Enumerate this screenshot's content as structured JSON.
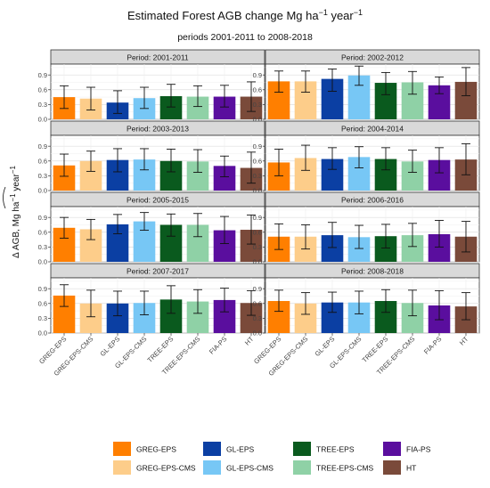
{
  "chart_data": {
    "type": "bar",
    "title": "Estimated Forest AGB change Mg ha",
    "title_superscript": "−1",
    "title_suffix": " year",
    "title_suffix_superscript": "−1",
    "subtitle": "periods 2001-2011 to 2008-2018",
    "ylabel_main": "Δ AGB, Mg ha",
    "ylabel_sup1": "−1",
    "ylabel_mid": " year",
    "ylabel_sup2": "−1",
    "ylim": [
      0,
      1.12
    ],
    "y_ticks": [
      "0.0",
      "0.3",
      "0.6",
      "0.9"
    ],
    "y_tick_values": [
      0.0,
      0.3,
      0.6,
      0.9
    ],
    "categories": [
      "GREG-EPS",
      "GREG-EPS-CMS",
      "GL-EPS",
      "GL-EPS-CMS",
      "TREE-EPS",
      "TREE-EPS-CMS",
      "FIA-PS",
      "HT"
    ],
    "colors": [
      "#ff7f00",
      "#fdcd8a",
      "#0b3fa3",
      "#77c7f5",
      "#0a5a1e",
      "#8fd1a6",
      "#5a0e9e",
      "#7a4a3a"
    ],
    "grid": true,
    "legend_position": "bottom",
    "panels": [
      {
        "label": "Period: 2001-2011",
        "values": [
          0.45,
          0.42,
          0.34,
          0.43,
          0.47,
          0.46,
          0.46,
          0.46
        ],
        "err_low": [
          0.22,
          0.19,
          0.12,
          0.22,
          0.25,
          0.26,
          0.25,
          0.16
        ],
        "err_high": [
          0.68,
          0.65,
          0.58,
          0.65,
          0.71,
          0.68,
          0.69,
          0.76
        ]
      },
      {
        "label": "Period: 2002-2012",
        "values": [
          0.77,
          0.77,
          0.82,
          0.89,
          0.74,
          0.75,
          0.69,
          0.76
        ],
        "err_low": [
          0.55,
          0.55,
          0.57,
          0.69,
          0.5,
          0.51,
          0.52,
          0.48
        ],
        "err_high": [
          0.98,
          0.98,
          1.02,
          1.08,
          0.95,
          0.97,
          0.86,
          1.05
        ]
      },
      {
        "label": "Period: 2003-2013",
        "values": [
          0.51,
          0.6,
          0.62,
          0.63,
          0.6,
          0.59,
          0.5,
          0.46
        ],
        "err_low": [
          0.29,
          0.39,
          0.38,
          0.42,
          0.38,
          0.37,
          0.28,
          0.15
        ],
        "err_high": [
          0.74,
          0.8,
          0.85,
          0.85,
          0.84,
          0.83,
          0.7,
          0.78
        ]
      },
      {
        "label": "Period: 2004-2014",
        "values": [
          0.57,
          0.66,
          0.64,
          0.68,
          0.64,
          0.59,
          0.62,
          0.63
        ],
        "err_low": [
          0.3,
          0.41,
          0.43,
          0.46,
          0.42,
          0.37,
          0.36,
          0.32
        ],
        "err_high": [
          0.84,
          0.92,
          0.87,
          0.89,
          0.87,
          0.82,
          0.87,
          0.95
        ]
      },
      {
        "label": "Period: 2005-2015",
        "values": [
          0.69,
          0.66,
          0.76,
          0.82,
          0.75,
          0.75,
          0.64,
          0.65
        ],
        "err_low": [
          0.48,
          0.45,
          0.57,
          0.64,
          0.52,
          0.51,
          0.37,
          0.36
        ],
        "err_high": [
          0.9,
          0.86,
          0.96,
          1.0,
          0.97,
          0.98,
          0.92,
          0.95
        ]
      },
      {
        "label": "Period: 2006-2016",
        "values": [
          0.51,
          0.51,
          0.54,
          0.5,
          0.52,
          0.54,
          0.56,
          0.51
        ],
        "err_low": [
          0.25,
          0.26,
          0.29,
          0.27,
          0.28,
          0.31,
          0.3,
          0.2
        ],
        "err_high": [
          0.77,
          0.75,
          0.8,
          0.74,
          0.76,
          0.78,
          0.84,
          0.82
        ]
      },
      {
        "label": "Period: 2007-2017",
        "values": [
          0.76,
          0.6,
          0.6,
          0.61,
          0.68,
          0.64,
          0.67,
          0.61
        ],
        "err_low": [
          0.54,
          0.33,
          0.35,
          0.37,
          0.4,
          0.4,
          0.43,
          0.36
        ],
        "err_high": [
          0.98,
          0.87,
          0.85,
          0.85,
          0.96,
          0.88,
          0.91,
          0.86
        ]
      },
      {
        "label": "Period: 2008-2018",
        "values": [
          0.65,
          0.6,
          0.62,
          0.62,
          0.65,
          0.61,
          0.56,
          0.54
        ],
        "err_low": [
          0.44,
          0.38,
          0.42,
          0.39,
          0.42,
          0.35,
          0.27,
          0.27
        ],
        "err_high": [
          0.87,
          0.82,
          0.83,
          0.85,
          0.88,
          0.87,
          0.86,
          0.82
        ]
      }
    ]
  }
}
